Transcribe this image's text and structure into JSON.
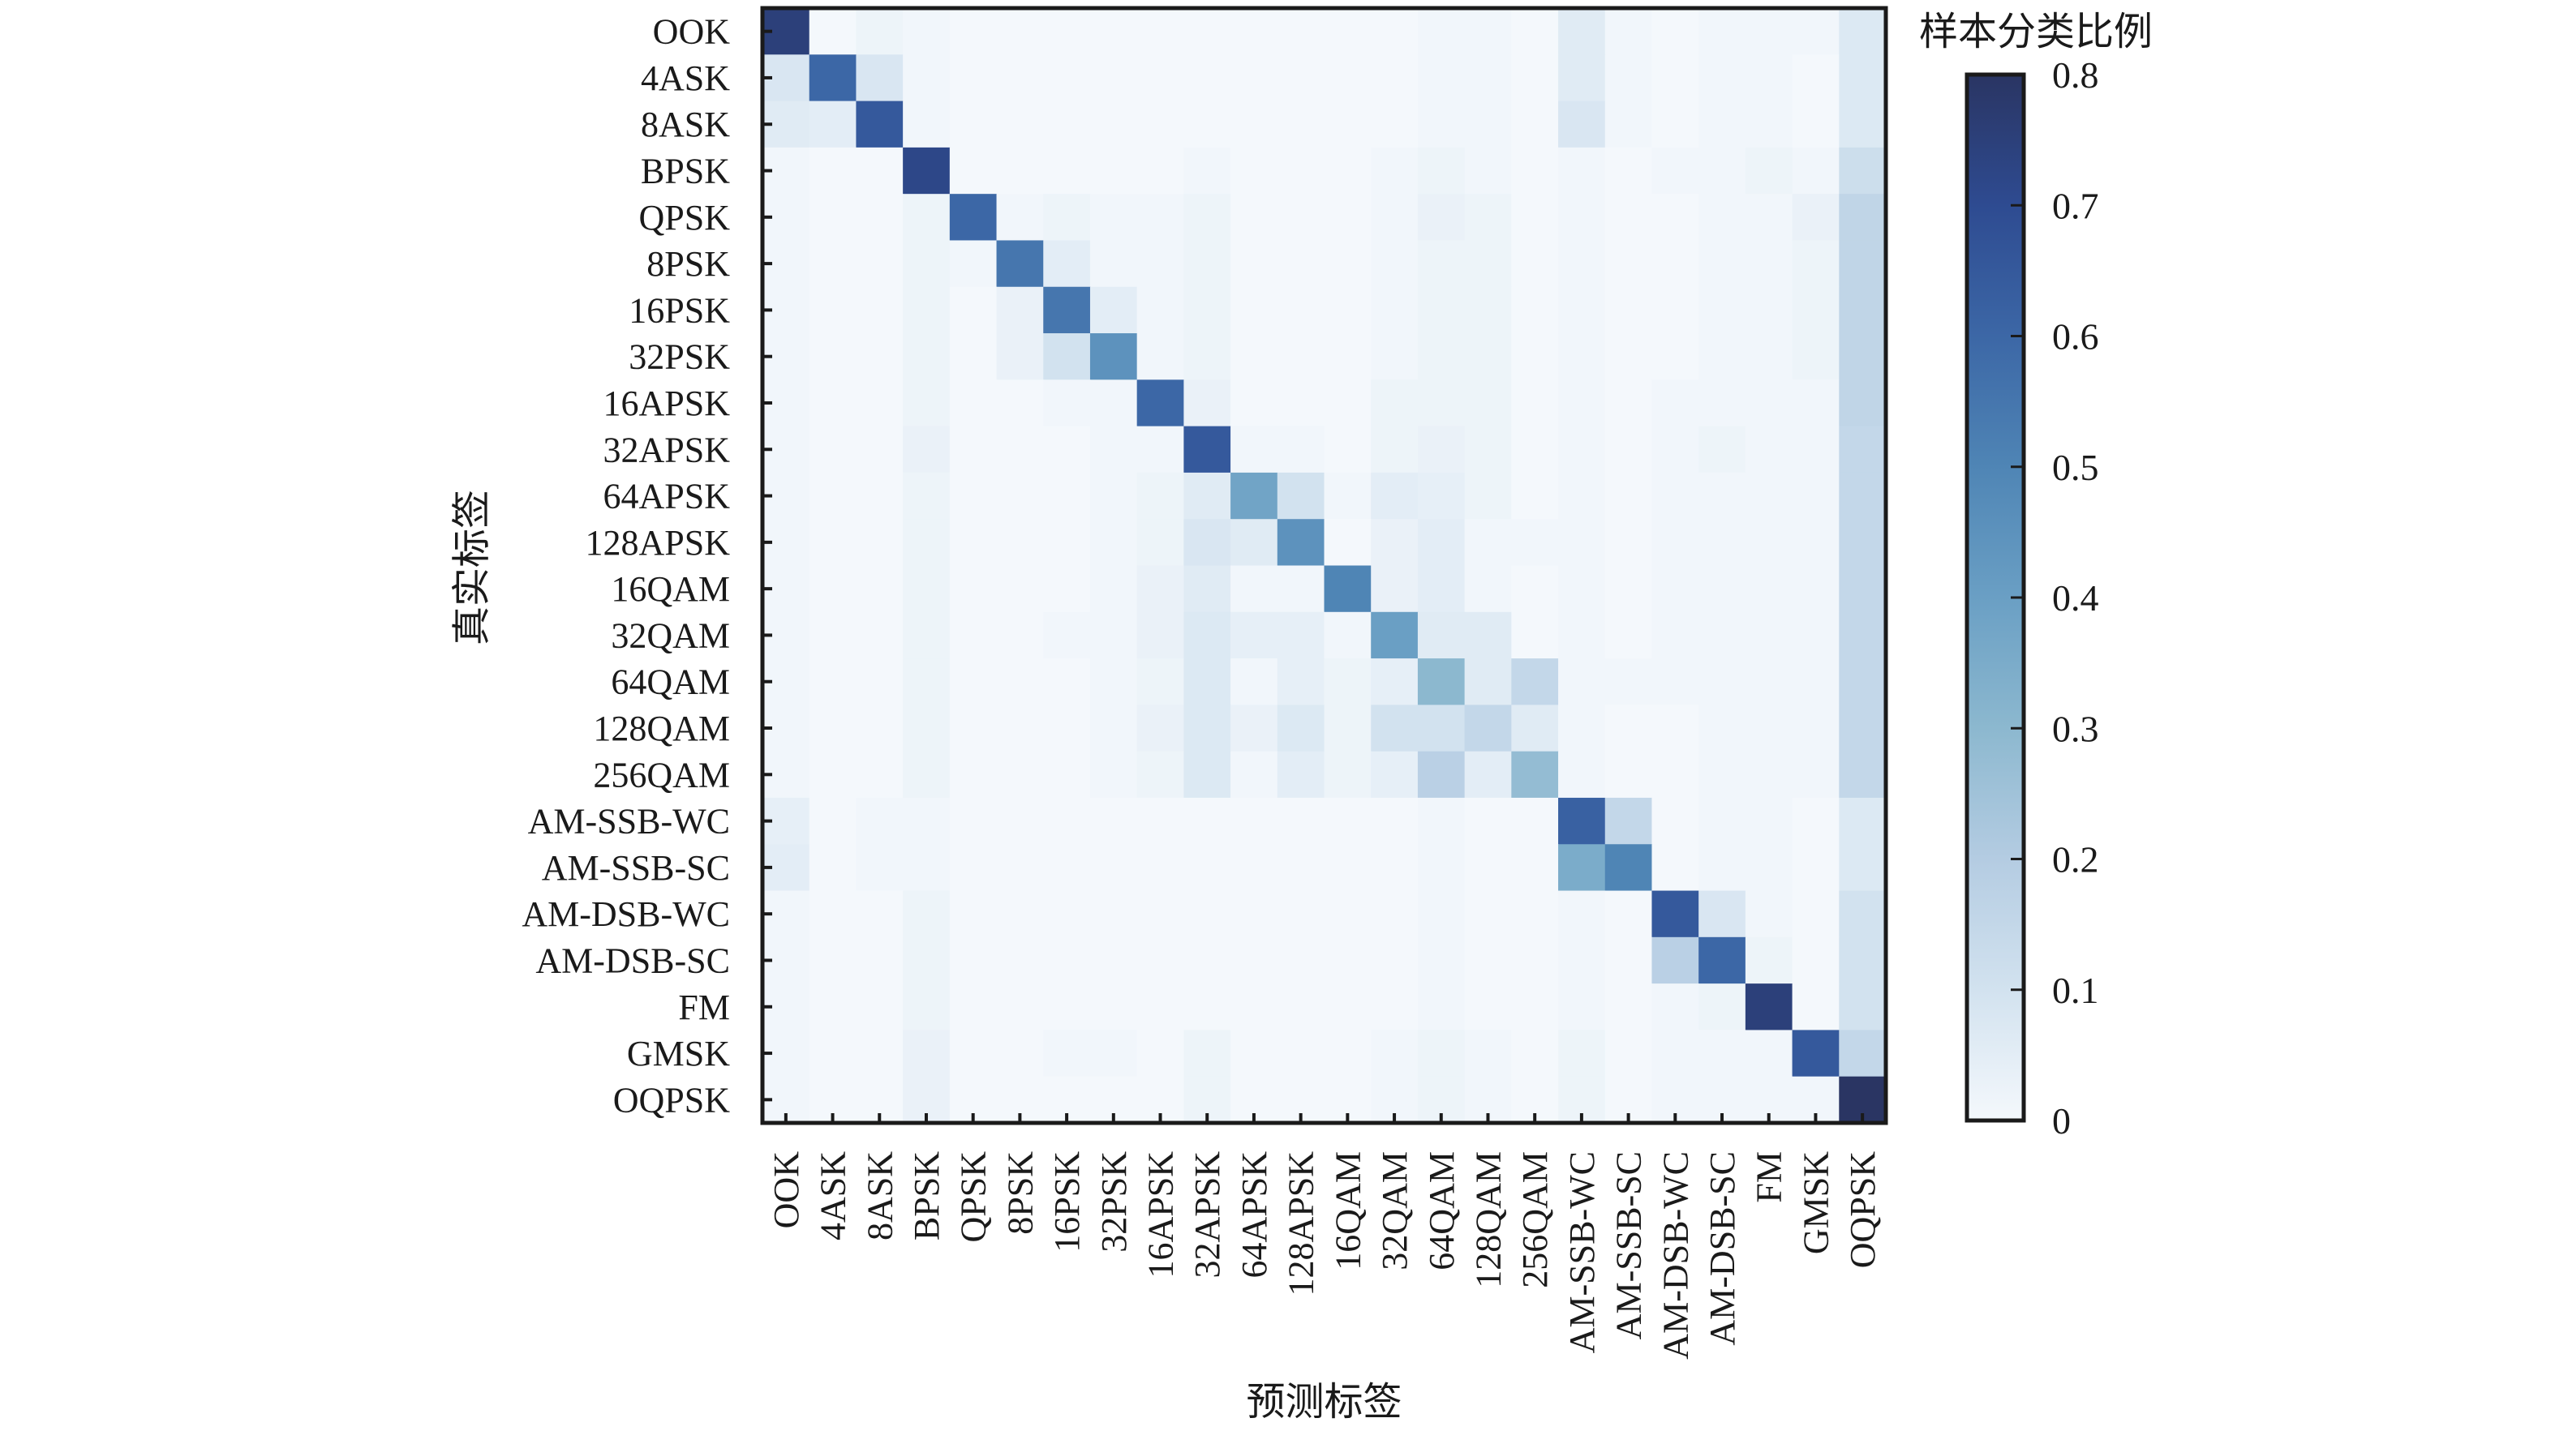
{
  "chart_data": {
    "type": "heatmap",
    "title": "",
    "xlabel": "预测标签",
    "ylabel": "真实标签",
    "colorbar": {
      "label": "样本分类比例",
      "range": [
        0,
        0.8
      ],
      "ticks": [
        "0",
        "0.1",
        "0.2",
        "0.3",
        "0.4",
        "0.5",
        "0.6",
        "0.7",
        "0.8"
      ],
      "tick_values": [
        0,
        0.1,
        0.2,
        0.3,
        0.4,
        0.5,
        0.6,
        0.7,
        0.8
      ],
      "colors": [
        "#f4f8fc",
        "#d2e2ef",
        "#b4cce2",
        "#8cb8cf",
        "#6a9fc4",
        "#4f85b5",
        "#3c67a6",
        "#2e4b91",
        "#2a3563"
      ]
    },
    "x_categories": [
      "OOK",
      "4ASK",
      "8ASK",
      "BPSK",
      "QPSK",
      "8PSK",
      "16PSK",
      "32PSK",
      "16APSK",
      "32APSK",
      "64APSK",
      "128APSK",
      "16QAM",
      "32QAM",
      "64QAM",
      "128QAM",
      "256QAM",
      "AM-SSB-WC",
      "AM-SSB-SC",
      "AM-DSB-WC",
      "AM-DSB-SC",
      "FM",
      "GMSK",
      "OQPSK"
    ],
    "y_categories": [
      "OOK",
      "4ASK",
      "8ASK",
      "BPSK",
      "QPSK",
      "8PSK",
      "16PSK",
      "32PSK",
      "16APSK",
      "32APSK",
      "64APSK",
      "128APSK",
      "16QAM",
      "32QAM",
      "64QAM",
      "128QAM",
      "256QAM",
      "AM-SSB-WC",
      "AM-SSB-SC",
      "AM-DSB-WC",
      "AM-DSB-SC",
      "FM",
      "GMSK",
      "OQPSK"
    ],
    "values": [
      [
        0.75,
        0.0,
        0.02,
        0.01,
        0.0,
        0.0,
        0.0,
        0.0,
        0.0,
        0.0,
        0.0,
        0.0,
        0.0,
        0.0,
        0.01,
        0.01,
        0.0,
        0.06,
        0.01,
        0.0,
        0.01,
        0.01,
        0.01,
        0.07
      ],
      [
        0.08,
        0.6,
        0.08,
        0.01,
        0.0,
        0.0,
        0.0,
        0.0,
        0.0,
        0.0,
        0.0,
        0.0,
        0.0,
        0.0,
        0.01,
        0.01,
        0.0,
        0.06,
        0.01,
        0.0,
        0.01,
        0.01,
        0.0,
        0.07
      ],
      [
        0.06,
        0.05,
        0.65,
        0.01,
        0.0,
        0.0,
        0.0,
        0.0,
        0.0,
        0.0,
        0.0,
        0.0,
        0.0,
        0.0,
        0.01,
        0.01,
        0.0,
        0.08,
        0.01,
        0.0,
        0.01,
        0.01,
        0.0,
        0.07
      ],
      [
        0.01,
        0.0,
        0.0,
        0.72,
        0.0,
        0.0,
        0.0,
        0.0,
        0.0,
        0.01,
        0.0,
        0.0,
        0.0,
        0.01,
        0.02,
        0.01,
        0.0,
        0.01,
        0.0,
        0.01,
        0.01,
        0.02,
        0.01,
        0.12
      ],
      [
        0.01,
        0.0,
        0.0,
        0.02,
        0.6,
        0.01,
        0.02,
        0.01,
        0.01,
        0.02,
        0.0,
        0.0,
        0.0,
        0.01,
        0.03,
        0.02,
        0.0,
        0.01,
        0.0,
        0.0,
        0.01,
        0.01,
        0.03,
        0.16
      ],
      [
        0.01,
        0.0,
        0.0,
        0.02,
        0.01,
        0.55,
        0.05,
        0.01,
        0.01,
        0.02,
        0.0,
        0.0,
        0.0,
        0.01,
        0.02,
        0.02,
        0.0,
        0.01,
        0.0,
        0.0,
        0.01,
        0.01,
        0.02,
        0.16
      ],
      [
        0.01,
        0.0,
        0.0,
        0.02,
        0.0,
        0.03,
        0.55,
        0.05,
        0.01,
        0.02,
        0.0,
        0.0,
        0.0,
        0.01,
        0.02,
        0.02,
        0.0,
        0.01,
        0.0,
        0.0,
        0.01,
        0.01,
        0.02,
        0.16
      ],
      [
        0.01,
        0.0,
        0.0,
        0.02,
        0.0,
        0.03,
        0.1,
        0.45,
        0.01,
        0.02,
        0.0,
        0.0,
        0.0,
        0.01,
        0.02,
        0.02,
        0.0,
        0.01,
        0.0,
        0.0,
        0.01,
        0.01,
        0.02,
        0.16
      ],
      [
        0.01,
        0.0,
        0.0,
        0.02,
        0.0,
        0.0,
        0.01,
        0.01,
        0.6,
        0.03,
        0.0,
        0.0,
        0.0,
        0.02,
        0.02,
        0.02,
        0.0,
        0.01,
        0.0,
        0.01,
        0.01,
        0.01,
        0.01,
        0.16
      ],
      [
        0.01,
        0.0,
        0.0,
        0.03,
        0.0,
        0.0,
        0.0,
        0.01,
        0.01,
        0.65,
        0.01,
        0.01,
        0.0,
        0.02,
        0.03,
        0.02,
        0.0,
        0.01,
        0.0,
        0.01,
        0.02,
        0.01,
        0.01,
        0.15
      ],
      [
        0.01,
        0.0,
        0.0,
        0.02,
        0.0,
        0.0,
        0.0,
        0.01,
        0.02,
        0.06,
        0.38,
        0.1,
        0.01,
        0.05,
        0.04,
        0.02,
        0.0,
        0.01,
        0.0,
        0.01,
        0.01,
        0.01,
        0.01,
        0.15
      ],
      [
        0.01,
        0.0,
        0.0,
        0.02,
        0.0,
        0.0,
        0.0,
        0.01,
        0.02,
        0.08,
        0.06,
        0.45,
        0.0,
        0.03,
        0.05,
        0.01,
        0.01,
        0.01,
        0.0,
        0.01,
        0.01,
        0.01,
        0.01,
        0.15
      ],
      [
        0.01,
        0.0,
        0.0,
        0.02,
        0.0,
        0.0,
        0.0,
        0.01,
        0.03,
        0.06,
        0.01,
        0.01,
        0.5,
        0.03,
        0.05,
        0.01,
        0.0,
        0.01,
        0.0,
        0.01,
        0.01,
        0.01,
        0.01,
        0.15
      ],
      [
        0.01,
        0.0,
        0.0,
        0.02,
        0.0,
        0.0,
        0.01,
        0.01,
        0.03,
        0.07,
        0.04,
        0.04,
        0.01,
        0.4,
        0.06,
        0.06,
        0.0,
        0.01,
        0.0,
        0.01,
        0.01,
        0.01,
        0.01,
        0.15
      ],
      [
        0.01,
        0.0,
        0.0,
        0.02,
        0.0,
        0.0,
        0.0,
        0.01,
        0.02,
        0.07,
        0.01,
        0.04,
        0.02,
        0.04,
        0.3,
        0.06,
        0.15,
        0.01,
        0.01,
        0.01,
        0.01,
        0.01,
        0.01,
        0.15
      ],
      [
        0.01,
        0.0,
        0.0,
        0.02,
        0.0,
        0.0,
        0.0,
        0.01,
        0.03,
        0.07,
        0.03,
        0.07,
        0.02,
        0.1,
        0.1,
        0.15,
        0.06,
        0.01,
        0.0,
        0.0,
        0.01,
        0.01,
        0.01,
        0.15
      ],
      [
        0.01,
        0.0,
        0.0,
        0.02,
        0.0,
        0.0,
        0.0,
        0.01,
        0.02,
        0.07,
        0.01,
        0.05,
        0.02,
        0.04,
        0.18,
        0.05,
        0.28,
        0.01,
        0.0,
        0.0,
        0.01,
        0.01,
        0.01,
        0.15
      ],
      [
        0.04,
        0.0,
        0.01,
        0.01,
        0.0,
        0.0,
        0.0,
        0.0,
        0.0,
        0.0,
        0.0,
        0.0,
        0.0,
        0.0,
        0.01,
        0.0,
        0.0,
        0.62,
        0.15,
        0.0,
        0.01,
        0.01,
        0.0,
        0.07
      ],
      [
        0.05,
        0.0,
        0.01,
        0.01,
        0.0,
        0.0,
        0.0,
        0.0,
        0.0,
        0.0,
        0.0,
        0.0,
        0.0,
        0.0,
        0.01,
        0.0,
        0.0,
        0.35,
        0.5,
        0.0,
        0.01,
        0.01,
        0.0,
        0.07
      ],
      [
        0.01,
        0.0,
        0.0,
        0.02,
        0.0,
        0.0,
        0.0,
        0.0,
        0.0,
        0.0,
        0.0,
        0.0,
        0.0,
        0.0,
        0.01,
        0.0,
        0.0,
        0.01,
        0.0,
        0.65,
        0.08,
        0.01,
        0.0,
        0.1
      ],
      [
        0.01,
        0.0,
        0.0,
        0.02,
        0.0,
        0.0,
        0.0,
        0.0,
        0.0,
        0.0,
        0.0,
        0.0,
        0.0,
        0.0,
        0.01,
        0.0,
        0.0,
        0.01,
        0.0,
        0.18,
        0.6,
        0.02,
        0.0,
        0.1
      ],
      [
        0.01,
        0.0,
        0.0,
        0.02,
        0.0,
        0.0,
        0.0,
        0.0,
        0.0,
        0.0,
        0.0,
        0.0,
        0.0,
        0.0,
        0.01,
        0.0,
        0.0,
        0.01,
        0.0,
        0.01,
        0.02,
        0.75,
        0.0,
        0.1
      ],
      [
        0.01,
        0.0,
        0.0,
        0.03,
        0.0,
        0.0,
        0.01,
        0.01,
        0.0,
        0.02,
        0.0,
        0.0,
        0.0,
        0.01,
        0.02,
        0.01,
        0.0,
        0.02,
        0.0,
        0.01,
        0.01,
        0.01,
        0.65,
        0.15
      ],
      [
        0.01,
        0.0,
        0.0,
        0.03,
        0.0,
        0.0,
        0.0,
        0.0,
        0.0,
        0.02,
        0.0,
        0.0,
        0.0,
        0.01,
        0.02,
        0.01,
        0.0,
        0.02,
        0.0,
        0.01,
        0.01,
        0.01,
        0.01,
        0.82
      ]
    ]
  }
}
